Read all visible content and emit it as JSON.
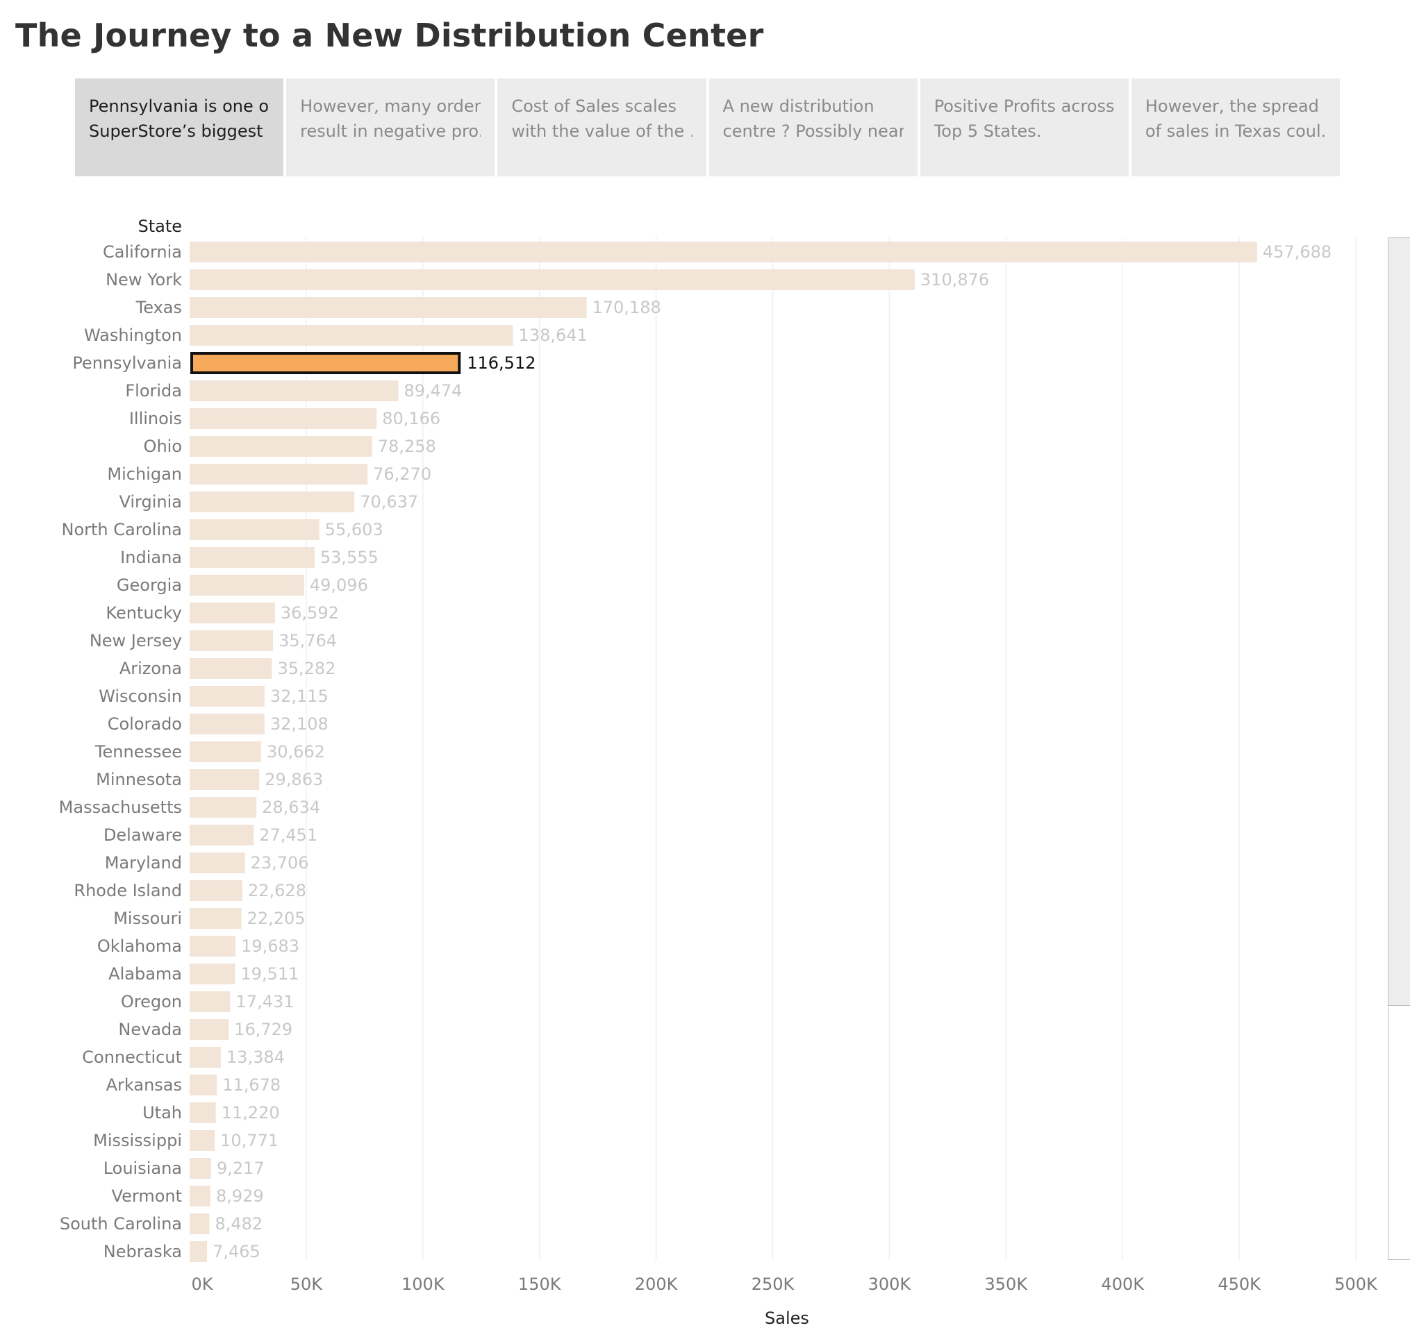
{
  "page": {
    "title": "The Journey to a New Distribution Center"
  },
  "story": {
    "points": [
      {
        "line1": "Pennsylvania is one of",
        "line2": "SuperStore’s biggest ..",
        "active": true
      },
      {
        "line1": "However, many orders",
        "line2": "result in negative pro..",
        "active": false
      },
      {
        "line1": "Cost of Sales scales",
        "line2": "with the value of the ..",
        "active": false
      },
      {
        "line1": "A new distribution",
        "line2": "centre ? Possibly near..",
        "active": false
      },
      {
        "line1": "Positive Profits across",
        "line2": "Top 5 States.",
        "active": false
      },
      {
        "line1": "However, the spread",
        "line2": "of sales in Texas coul..",
        "active": false
      }
    ]
  },
  "colors": {
    "bar_default": "#f3e4d8",
    "bar_highlight": "#f6a95a",
    "highlight_outline": "#111111",
    "label_muted": "#c8c8c8",
    "label_highlight": "#111111",
    "axis_text": "#7a7a7a",
    "gridline": "#efefef"
  },
  "chart_data": {
    "type": "bar",
    "orientation": "horizontal",
    "row_header": "State",
    "xlabel": "Sales",
    "xlim": [
      0,
      500000
    ],
    "x_ticks": [
      "0K",
      "50K",
      "100K",
      "150K",
      "200K",
      "250K",
      "300K",
      "350K",
      "400K",
      "450K",
      "500K"
    ],
    "grid": true,
    "highlighted_category": "Pennsylvania",
    "categories": [
      "California",
      "New York",
      "Texas",
      "Washington",
      "Pennsylvania",
      "Florida",
      "Illinois",
      "Ohio",
      "Michigan",
      "Virginia",
      "North Carolina",
      "Indiana",
      "Georgia",
      "Kentucky",
      "New Jersey",
      "Arizona",
      "Wisconsin",
      "Colorado",
      "Tennessee",
      "Minnesota",
      "Massachusetts",
      "Delaware",
      "Maryland",
      "Rhode Island",
      "Missouri",
      "Oklahoma",
      "Alabama",
      "Oregon",
      "Nevada",
      "Connecticut",
      "Arkansas",
      "Utah",
      "Mississippi",
      "Louisiana",
      "Vermont",
      "South Carolina",
      "Nebraska"
    ],
    "values": [
      457688,
      310876,
      170188,
      138641,
      116512,
      89474,
      80166,
      78258,
      76270,
      70637,
      55603,
      53555,
      49096,
      36592,
      35764,
      35282,
      32115,
      32108,
      30662,
      29863,
      28634,
      27451,
      23706,
      22628,
      22205,
      19683,
      19511,
      17431,
      16729,
      13384,
      11678,
      11220,
      10771,
      9217,
      8929,
      8482,
      7465
    ],
    "labels": [
      "457,688",
      "310,876",
      "170,188",
      "138,641",
      "116,512",
      "89,474",
      "80,166",
      "78,258",
      "76,270",
      "70,637",
      "55,603",
      "53,555",
      "49,096",
      "36,592",
      "35,764",
      "35,282",
      "32,115",
      "32,108",
      "30,662",
      "29,863",
      "28,634",
      "27,451",
      "23,706",
      "22,628",
      "22,205",
      "19,683",
      "19,511",
      "17,431",
      "16,729",
      "13,384",
      "11,678",
      "11,220",
      "10,771",
      "9,217",
      "8,929",
      "8,482",
      "7,465"
    ]
  }
}
